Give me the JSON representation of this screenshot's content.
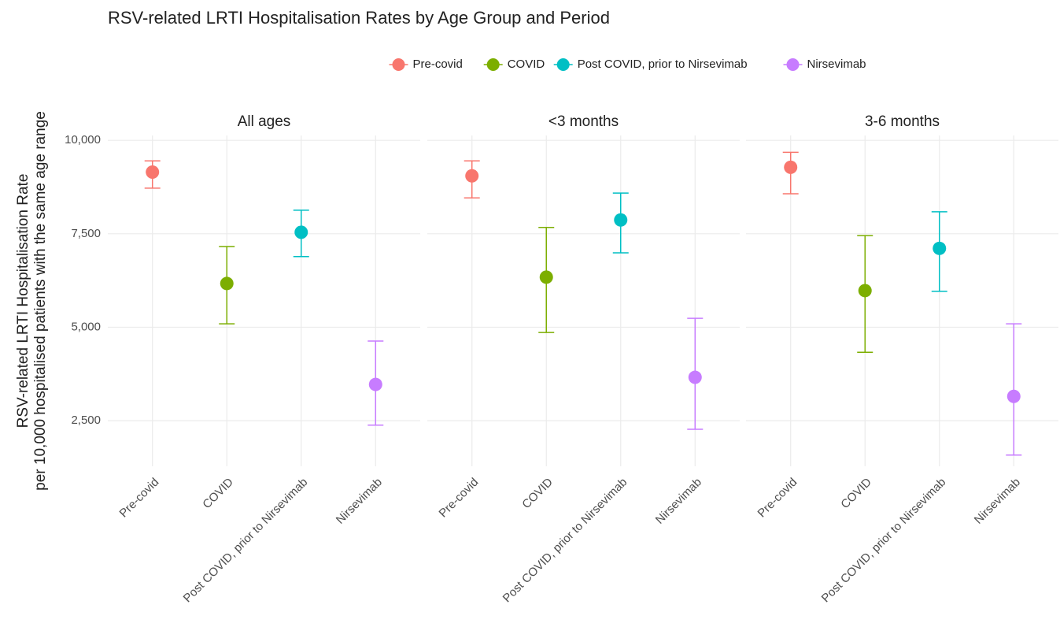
{
  "chart_data": {
    "type": "errorbar",
    "title": "RSV-related LRTI Hospitalisation Rates by Age Group and Period",
    "ylabel": [
      "RSV-related LRTI Hospitalisation Rate",
      "per 10,000 hospitalised patients with the same age range"
    ],
    "categories": [
      "Pre-covid",
      "COVID",
      "Post COVID, prior to Nirsevimab",
      "Nirsevimab"
    ],
    "colors": [
      "#F8766D",
      "#7CAE00",
      "#00BFC4",
      "#C77CFF"
    ],
    "legend": "top",
    "grid": true,
    "ylim": [
      1280,
      10130
    ],
    "yticks": [
      {
        "value": 2500,
        "label": "2,500"
      },
      {
        "value": 5000,
        "label": "5,000"
      },
      {
        "value": 7500,
        "label": "7,500"
      },
      {
        "value": 10000,
        "label": "10,000"
      }
    ],
    "facets": [
      {
        "title": "All ages",
        "values": [
          9150,
          6170,
          7540,
          3470
        ],
        "lower": [
          8720,
          5090,
          6890,
          2380
        ],
        "upper": [
          9450,
          7160,
          8130,
          4630
        ]
      },
      {
        "title": "<3 months",
        "values": [
          9050,
          6340,
          7870,
          3660
        ],
        "lower": [
          8460,
          4860,
          6990,
          2270
        ],
        "upper": [
          9450,
          7670,
          8590,
          5240
        ]
      },
      {
        "title": "3-6 months",
        "values": [
          9280,
          5980,
          7110,
          3150
        ],
        "lower": [
          8570,
          4330,
          5960,
          1580
        ],
        "upper": [
          9680,
          7450,
          8090,
          5090
        ]
      }
    ]
  }
}
